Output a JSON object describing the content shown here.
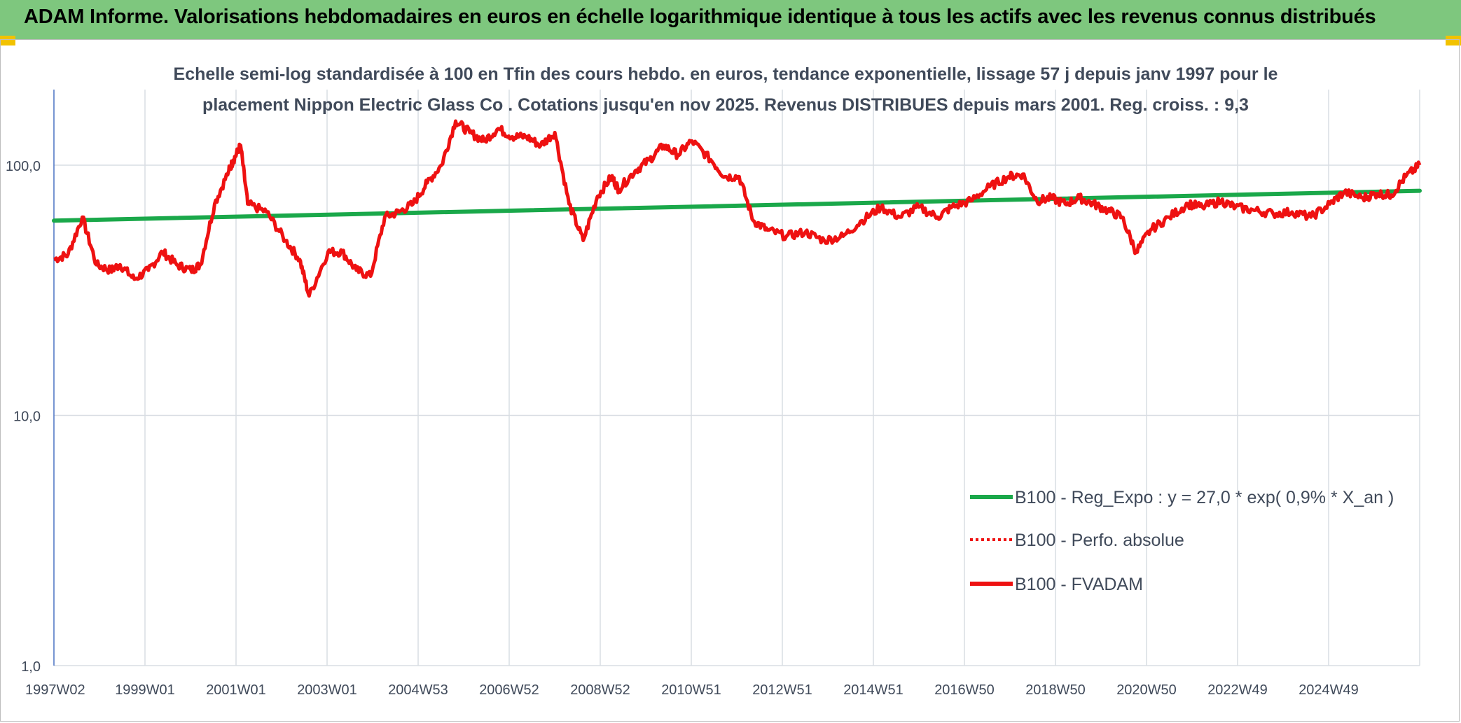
{
  "header": {
    "title": "ADAM Informe. Valorisations hebdomadaires en euros en échelle logarithmique identique à tous les actifs avec les revenus connus distribués"
  },
  "colors": {
    "banner": "#7ec77e",
    "trend": "#1aa84a",
    "price": "#ee1111",
    "grid": "#d9dde3",
    "text": "#404a5a"
  },
  "chart_data": {
    "type": "line",
    "title_lines": [
      "Echelle semi-log standardisée à 100 en Tfin des cours hebdo. en euros, tendance exponentielle, lissage 57 j depuis janv 1997 pour le",
      "placement Nippon Electric Glass Co . Cotations jusqu'en nov 2025. Revenus DISTRIBUES depuis mars 2001. Reg. croiss. : 9,3"
    ],
    "yscale": "log",
    "ylim": [
      1,
      180
    ],
    "y_ticks": [
      1,
      10,
      100
    ],
    "y_tick_labels": [
      "1,0",
      "10,0",
      "100,0"
    ],
    "x_tick_labels": [
      "1997W02",
      "1999W01",
      "2001W01",
      "2003W01",
      "2004W53",
      "2006W52",
      "2008W52",
      "2010W51",
      "2012W51",
      "2014W51",
      "2016W50",
      "2018W50",
      "2020W50",
      "2022W49",
      "2024W49"
    ],
    "x_range_years": [
      1997.0,
      2025.9
    ],
    "legend_position": "bottom-right",
    "legend": [
      {
        "label": "B100 - Reg_Expo : y = 27,0 * exp( 0,9% *  X_an )",
        "style": "solid-green"
      },
      {
        "label": "B100 - Perfo. absolue",
        "style": "dotted-red"
      },
      {
        "label": "B100 - FVADAM",
        "style": "solid-red"
      }
    ],
    "series": [
      {
        "name": "B100 - Reg_Expo",
        "x": [
          1997.0,
          2025.9
        ],
        "y": [
          60.0,
          79.0
        ]
      },
      {
        "name": "B100 - FVADAM",
        "x": [
          1997.0,
          1997.3,
          1997.6,
          1997.9,
          1998.2,
          1998.4,
          1998.7,
          1999.0,
          1999.3,
          1999.6,
          1999.9,
          2000.1,
          2000.4,
          2000.7,
          2000.8,
          2000.95,
          2001.1,
          2001.5,
          2001.9,
          2002.2,
          2002.4,
          2002.8,
          2003.1,
          2003.4,
          2003.7,
          2004.0,
          2004.3,
          2004.6,
          2004.9,
          2005.2,
          2005.5,
          2005.8,
          2006.1,
          2006.4,
          2006.7,
          2007.0,
          2007.3,
          2007.6,
          2007.9,
          2008.2,
          2008.5,
          2008.8,
          2008.95,
          2009.3,
          2009.6,
          2009.9,
          2010.2,
          2010.5,
          2010.9,
          2011.2,
          2011.5,
          2011.8,
          2012.1,
          2012.5,
          2012.9,
          2013.3,
          2013.7,
          2014.1,
          2014.5,
          2014.9,
          2015.3,
          2015.7,
          2016.0,
          2016.4,
          2016.8,
          2017.2,
          2017.5,
          2017.8,
          2018.1,
          2018.4,
          2018.7,
          2019.0,
          2019.3,
          2019.6,
          2019.9,
          2020.2,
          2020.6,
          2021.0,
          2021.3,
          2021.7,
          2022.0,
          2022.4,
          2022.8,
          2023.2,
          2023.6,
          2024.0,
          2024.3,
          2024.7,
          2025.0,
          2025.3,
          2025.6,
          2025.9
        ],
        "y": [
          42,
          44,
          62,
          40,
          38,
          40,
          35,
          38,
          45,
          40,
          38,
          40,
          70,
          95,
          105,
          120,
          70,
          65,
          50,
          42,
          30,
          45,
          45,
          38,
          36,
          62,
          65,
          70,
          85,
          100,
          150,
          135,
          125,
          140,
          130,
          130,
          120,
          135,
          70,
          50,
          75,
          90,
          80,
          95,
          105,
          120,
          110,
          125,
          105,
          90,
          90,
          60,
          55,
          52,
          54,
          50,
          52,
          60,
          68,
          62,
          68,
          62,
          68,
          72,
          82,
          90,
          92,
          72,
          74,
          70,
          74,
          70,
          66,
          62,
          45,
          55,
          62,
          70,
          68,
          72,
          68,
          66,
          64,
          65,
          62,
          70,
          78,
          74,
          77,
          76,
          90,
          100
        ]
      }
    ]
  }
}
